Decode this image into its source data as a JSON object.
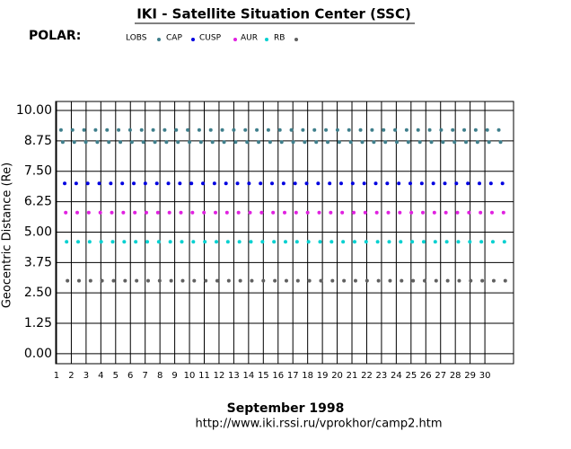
{
  "chart_data": {
    "type": "scatter",
    "title": "IKI - Satellite Situation Center (SSC)",
    "satellite": "POLAR:",
    "xlabel": "September    1998",
    "ylabel": "Geocentric Distance (Re)",
    "footer": "http://www.iki.rssi.ru/vprokhor/camp2.htm",
    "xlim": [
      0.94,
      31.94
    ],
    "ylim": [
      -0.41,
      10.37
    ],
    "xticks": [
      1,
      2,
      3,
      4,
      5,
      6,
      7,
      8,
      9,
      10,
      11,
      12,
      13,
      14,
      15,
      16,
      17,
      18,
      19,
      20,
      21,
      22,
      23,
      24,
      25,
      26,
      27,
      28,
      29,
      30
    ],
    "yticks": [
      {
        "value": 0,
        "label": "0.00"
      },
      {
        "value": 1.25,
        "label": "1.25"
      },
      {
        "value": 2.5,
        "label": "2.50"
      },
      {
        "value": 3.75,
        "label": "3.75"
      },
      {
        "value": 5,
        "label": "5.00"
      },
      {
        "value": 6.25,
        "label": "6.25"
      },
      {
        "value": 7.5,
        "label": "7.50"
      },
      {
        "value": 8.75,
        "label": "8.75"
      },
      {
        "value": 10,
        "label": "10.00"
      }
    ],
    "grid": true,
    "series": [
      {
        "name": "LOBS",
        "color": "#3f7f8c",
        "x": [
          1.3,
          1.42,
          2.08,
          2.2,
          2.86,
          2.98,
          3.64,
          3.76,
          4.42,
          4.54,
          5.2,
          5.32,
          5.98,
          6.1,
          6.76,
          6.88,
          7.54,
          7.66,
          8.32,
          8.44,
          9.1,
          9.22,
          9.88,
          10.0,
          10.66,
          10.78,
          11.44,
          11.56,
          12.22,
          12.34,
          13.0,
          13.12,
          13.78,
          13.9,
          14.56,
          14.68,
          15.34,
          15.46,
          16.12,
          16.24,
          16.9,
          17.02,
          17.68,
          17.8,
          18.46,
          18.58,
          19.24,
          19.36,
          20.02,
          20.14,
          20.8,
          20.92,
          21.58,
          21.7,
          22.36,
          22.48,
          23.14,
          23.26,
          23.92,
          24.04,
          24.7,
          24.82,
          25.48,
          25.6,
          26.26,
          26.38,
          27.04,
          27.16,
          27.82,
          27.94,
          28.6,
          28.72,
          29.38,
          29.5,
          30.16,
          30.28,
          30.94,
          31.06
        ],
        "values": [
          9.2,
          8.7,
          9.2,
          8.7,
          9.2,
          8.7,
          9.2,
          8.7,
          9.2,
          8.7,
          9.2,
          8.7,
          9.2,
          8.7,
          9.2,
          8.7,
          9.2,
          8.7,
          9.2,
          8.7,
          9.2,
          8.7,
          9.2,
          8.7,
          9.2,
          8.7,
          9.2,
          8.7,
          9.2,
          8.7,
          9.2,
          8.7,
          9.2,
          8.7,
          9.2,
          8.7,
          9.2,
          8.7,
          9.2,
          8.7,
          9.2,
          8.7,
          9.2,
          8.7,
          9.2,
          8.7,
          9.2,
          8.7,
          9.2,
          8.7,
          9.2,
          8.7,
          9.2,
          8.7,
          9.2,
          8.7,
          9.2,
          8.7,
          9.2,
          8.7,
          9.2,
          8.7,
          9.2,
          8.7,
          9.2,
          8.7,
          9.2,
          8.7,
          9.2,
          8.7,
          9.2,
          8.7,
          9.2,
          8.7,
          9.2,
          8.7,
          9.2,
          8.7
        ]
      },
      {
        "name": "CAP",
        "color": "#0000e0",
        "x": [
          1.55,
          2.33,
          3.11,
          3.89,
          4.67,
          5.45,
          6.23,
          7.01,
          7.79,
          8.57,
          9.35,
          10.13,
          10.91,
          11.69,
          12.47,
          13.25,
          14.03,
          14.81,
          15.59,
          16.37,
          17.15,
          17.93,
          18.71,
          19.49,
          20.27,
          21.05,
          21.83,
          22.61,
          23.39,
          24.17,
          24.95,
          25.73,
          26.51,
          27.29,
          28.07,
          28.85,
          29.63,
          30.41,
          31.19
        ],
        "values": [
          7.0,
          7.0,
          7.0,
          7.0,
          7.0,
          7.0,
          7.0,
          7.0,
          7.0,
          7.0,
          7.0,
          7.0,
          7.0,
          7.0,
          7.0,
          7.0,
          7.0,
          7.0,
          7.0,
          7.0,
          7.0,
          7.0,
          7.0,
          7.0,
          7.0,
          7.0,
          7.0,
          7.0,
          7.0,
          7.0,
          7.0,
          7.0,
          7.0,
          7.0,
          7.0,
          7.0,
          7.0,
          7.0,
          7.0
        ]
      },
      {
        "name": "CUSP",
        "color": "#e020e0",
        "x": [
          1.62,
          2.4,
          3.18,
          3.96,
          4.74,
          5.52,
          6.3,
          7.08,
          7.86,
          8.64,
          9.42,
          10.2,
          10.98,
          11.76,
          12.54,
          13.32,
          14.1,
          14.88,
          15.66,
          16.44,
          17.22,
          18.0,
          18.78,
          19.56,
          20.34,
          21.12,
          21.9,
          22.68,
          23.46,
          24.24,
          25.02,
          25.8,
          26.58,
          27.36,
          28.14,
          28.92,
          29.7,
          30.48,
          31.26
        ],
        "values": [
          5.8,
          5.8,
          5.8,
          5.8,
          5.8,
          5.8,
          5.8,
          5.8,
          5.8,
          5.8,
          5.8,
          5.8,
          5.8,
          5.8,
          5.8,
          5.8,
          5.8,
          5.8,
          5.8,
          5.8,
          5.8,
          5.8,
          5.8,
          5.8,
          5.8,
          5.8,
          5.8,
          5.8,
          5.8,
          5.8,
          5.8,
          5.8,
          5.8,
          5.8,
          5.8,
          5.8,
          5.8,
          5.8,
          5.8
        ]
      },
      {
        "name": "AUR",
        "color": "#00d0d0",
        "x": [
          1.68,
          2.46,
          3.24,
          4.02,
          4.8,
          5.58,
          6.36,
          7.14,
          7.92,
          8.7,
          9.48,
          10.26,
          11.04,
          11.82,
          12.6,
          13.38,
          14.16,
          14.94,
          15.72,
          16.5,
          17.28,
          18.06,
          18.84,
          19.62,
          20.4,
          21.18,
          21.96,
          22.74,
          23.52,
          24.3,
          25.08,
          25.86,
          26.64,
          27.42,
          28.2,
          28.98,
          29.76,
          30.54,
          31.32
        ],
        "values": [
          4.6,
          4.6,
          4.6,
          4.6,
          4.6,
          4.6,
          4.6,
          4.6,
          4.6,
          4.6,
          4.6,
          4.6,
          4.6,
          4.6,
          4.6,
          4.6,
          4.6,
          4.6,
          4.6,
          4.6,
          4.6,
          4.6,
          4.6,
          4.6,
          4.6,
          4.6,
          4.6,
          4.6,
          4.6,
          4.6,
          4.6,
          4.6,
          4.6,
          4.6,
          4.6,
          4.6,
          4.6,
          4.6,
          4.6
        ]
      },
      {
        "name": "RB",
        "color": "#606060",
        "x": [
          1.74,
          2.52,
          3.3,
          4.08,
          4.86,
          5.64,
          6.42,
          7.2,
          7.98,
          8.76,
          9.54,
          10.32,
          11.1,
          11.88,
          12.66,
          13.44,
          14.22,
          15.0,
          15.78,
          16.56,
          17.34,
          18.12,
          18.9,
          19.68,
          20.46,
          21.24,
          22.02,
          22.8,
          23.58,
          24.36,
          25.14,
          25.92,
          26.7,
          27.48,
          28.26,
          29.04,
          29.82,
          30.6,
          31.38
        ],
        "values": [
          3.0,
          3.0,
          3.0,
          3.0,
          3.0,
          3.0,
          3.0,
          3.0,
          3.0,
          3.0,
          3.0,
          3.0,
          3.0,
          3.0,
          3.0,
          3.0,
          3.0,
          3.0,
          3.0,
          3.0,
          3.0,
          3.0,
          3.0,
          3.0,
          3.0,
          3.0,
          3.0,
          3.0,
          3.0,
          3.0,
          3.0,
          3.0,
          3.0,
          3.0,
          3.0,
          3.0,
          3.0,
          3.0,
          3.0
        ]
      }
    ]
  }
}
